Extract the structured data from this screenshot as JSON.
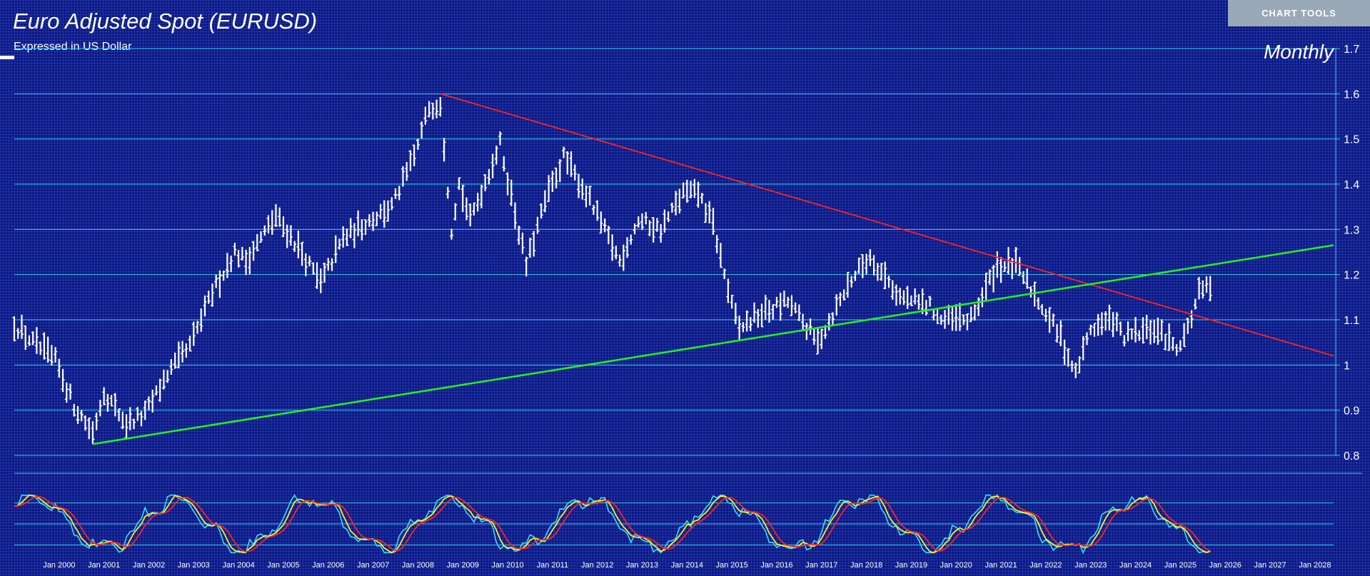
{
  "header": {
    "title": "Euro Adjusted Spot (EURUSD)",
    "subtitle": "Expressed in US Dollar",
    "chart_tools_label": "CHART TOOLS"
  },
  "colors": {
    "background": "#0a1880",
    "gridline": "#33ccee",
    "bars": "#ffffff",
    "resistance_line": "#ff2222",
    "support_line": "#22ee22",
    "oscillator_fast": "#33ddff",
    "oscillator_mid": "#ffee22",
    "oscillator_slow": "#ff2222"
  },
  "chart_data": [
    {
      "type": "ohlc-bar",
      "timeframe": "Monthly",
      "ylim": [
        0.8,
        1.7
      ],
      "yticks": [
        "0.8",
        "0.9",
        "1",
        "1.1",
        "1.2",
        "1.3",
        "1.4",
        "1.5",
        "1.6",
        "1.7"
      ],
      "xlim": [
        "1999-01",
        "2028-06"
      ],
      "xticks": [
        "Jan 2000",
        "Jan 2001",
        "Jan 2002",
        "Jan 2003",
        "Jan 2004",
        "Jan 2005",
        "Jan 2006",
        "Jan 2007",
        "Jan 2008",
        "Jan 2009",
        "Jan 2010",
        "Jan 2011",
        "Jan 2012",
        "Jan 2013",
        "Jan 2014",
        "Jan 2015",
        "Jan 2016",
        "Jan 2017",
        "Jan 2018",
        "Jan 2019",
        "Jan 2020",
        "Jan 2021",
        "Jan 2022",
        "Jan 2023",
        "Jan 2024",
        "Jan 2025",
        "Jan 2026",
        "Jan 2027",
        "Jan 2028"
      ],
      "grid": true,
      "anchors": [
        [
          "1999-01",
          1.09
        ],
        [
          "1999-06",
          1.05
        ],
        [
          "1999-12",
          1.01
        ],
        [
          "2000-05",
          0.91
        ],
        [
          "2000-10",
          0.85
        ],
        [
          "2001-01",
          0.94
        ],
        [
          "2001-07",
          0.87
        ],
        [
          "2001-12",
          0.89
        ],
        [
          "2002-06",
          0.98
        ],
        [
          "2002-12",
          1.04
        ],
        [
          "2003-06",
          1.16
        ],
        [
          "2003-12",
          1.25
        ],
        [
          "2004-03",
          1.23
        ],
        [
          "2004-11",
          1.33
        ],
        [
          "2005-05",
          1.26
        ],
        [
          "2005-11",
          1.18
        ],
        [
          "2006-05",
          1.28
        ],
        [
          "2006-12",
          1.32
        ],
        [
          "2007-06",
          1.35
        ],
        [
          "2007-12",
          1.46
        ],
        [
          "2008-04",
          1.57
        ],
        [
          "2008-07",
          1.58
        ],
        [
          "2008-10",
          1.3
        ],
        [
          "2008-12",
          1.4
        ],
        [
          "2009-03",
          1.32
        ],
        [
          "2009-11",
          1.49
        ],
        [
          "2010-06",
          1.22
        ],
        [
          "2010-11",
          1.36
        ],
        [
          "2011-04",
          1.46
        ],
        [
          "2011-10",
          1.38
        ],
        [
          "2012-07",
          1.23
        ],
        [
          "2012-12",
          1.32
        ],
        [
          "2013-06",
          1.3
        ],
        [
          "2013-12",
          1.38
        ],
        [
          "2014-04",
          1.38
        ],
        [
          "2014-08",
          1.31
        ],
        [
          "2015-01",
          1.13
        ],
        [
          "2015-03",
          1.08
        ],
        [
          "2015-08",
          1.11
        ],
        [
          "2016-04",
          1.14
        ],
        [
          "2016-12",
          1.05
        ],
        [
          "2017-09",
          1.19
        ],
        [
          "2018-02",
          1.24
        ],
        [
          "2018-10",
          1.15
        ],
        [
          "2019-06",
          1.13
        ],
        [
          "2019-09",
          1.1
        ],
        [
          "2020-05",
          1.1
        ],
        [
          "2020-12",
          1.22
        ],
        [
          "2021-05",
          1.22
        ],
        [
          "2021-12",
          1.13
        ],
        [
          "2022-05",
          1.06
        ],
        [
          "2022-09",
          0.98
        ],
        [
          "2023-01",
          1.08
        ],
        [
          "2023-07",
          1.1
        ],
        [
          "2023-10",
          1.06
        ],
        [
          "2024-06",
          1.08
        ],
        [
          "2024-12",
          1.04
        ],
        [
          "2025-03",
          1.08
        ],
        [
          "2025-06",
          1.16
        ],
        [
          "2025-09",
          1.17
        ]
      ],
      "trendlines": [
        {
          "color_key": "resistance_line",
          "from": [
            "2008-07",
            1.6
          ],
          "to": [
            "2028-06",
            1.02
          ]
        },
        {
          "color_key": "support_line",
          "from": [
            "2000-10",
            0.825
          ],
          "to": [
            "2028-06",
            1.265
          ]
        }
      ]
    },
    {
      "type": "line",
      "panel": "oscillator",
      "ylim": [
        0,
        100
      ],
      "gridlines": [
        15,
        50,
        85
      ],
      "series_keys": [
        "oscillator_fast",
        "oscillator_mid",
        "oscillator_slow"
      ]
    }
  ]
}
